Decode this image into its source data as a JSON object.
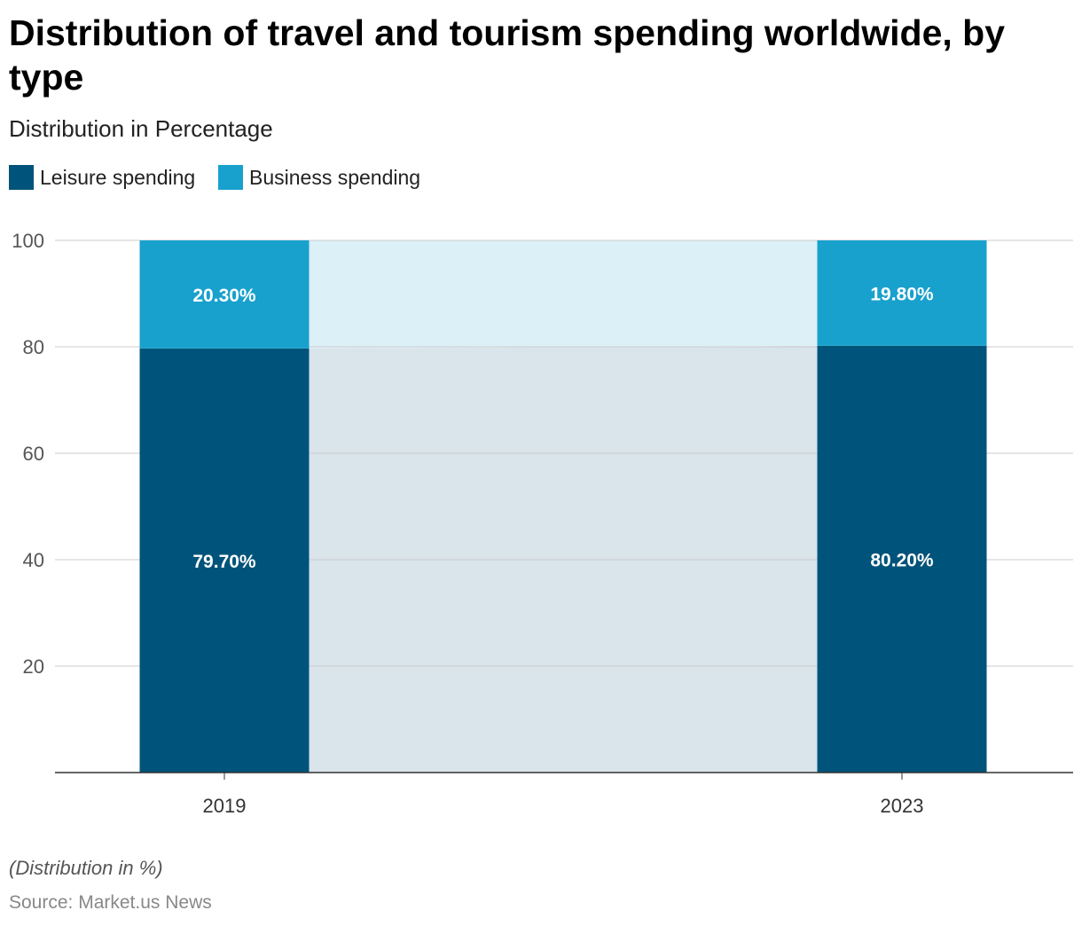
{
  "chart_data": {
    "type": "bar",
    "stacked": true,
    "title": "Distribution of travel and tourism spending worldwide, by type",
    "subtitle": "Distribution in Percentage",
    "categories": [
      "2019",
      "2023"
    ],
    "series": [
      {
        "name": "Leisure spending",
        "values": [
          79.7,
          80.2
        ],
        "labels": [
          "79.70%",
          "80.20%"
        ],
        "color": "#00537a"
      },
      {
        "name": "Business spending",
        "values": [
          20.3,
          19.8
        ],
        "labels": [
          "20.30%",
          "19.80%"
        ],
        "color": "#18a1cd"
      }
    ],
    "ylim": [
      0,
      100
    ],
    "yticks": [
      "20",
      "40",
      "60",
      "80",
      "100"
    ],
    "grid": true,
    "legend": "top-left",
    "note": "(Distribution in %)",
    "source": "Source: Market.us News"
  }
}
